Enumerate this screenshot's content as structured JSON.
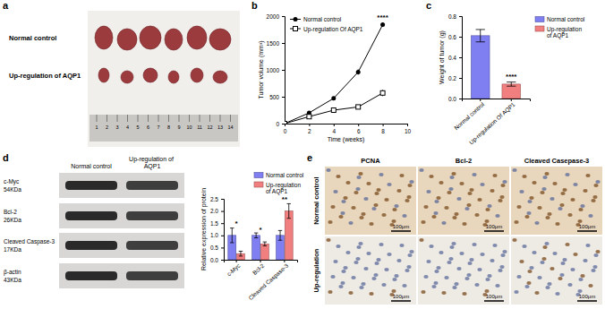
{
  "figure": {
    "letters": [
      "a",
      "b",
      "c",
      "d",
      "e"
    ],
    "panel_a": {
      "rows": [
        "Normal control",
        "Up-regulation of AQP1"
      ],
      "ruler": [
        1,
        2,
        3,
        4,
        5,
        6,
        7,
        8,
        9,
        10,
        11,
        12,
        13,
        14
      ]
    },
    "panel_d": {
      "columns": [
        "Normal control",
        "Up-regulation of AQP1"
      ],
      "bands": [
        {
          "name": "c-Myc",
          "size": "54KDa"
        },
        {
          "name": "Bcl-2",
          "size": "26KDa"
        },
        {
          "name": "Cleaved Caspase-3",
          "size": "17KDa"
        },
        {
          "name": "β-actin",
          "size": "43KDa"
        }
      ]
    },
    "panel_e": {
      "columns": [
        "PCNA",
        "Bcl-2",
        "Cleaved Casepase-3"
      ],
      "rows": [
        "Normal control",
        "Up-regulation"
      ],
      "scale_bar": "100μm"
    }
  },
  "chart_data": [
    {
      "type": "line",
      "x_label": "Time (weeks)",
      "y_label": "Tumor volume (mm³)",
      "x": [
        0,
        2,
        4,
        6,
        8
      ],
      "series": [
        {
          "name": "Normal control",
          "color": "#000000",
          "marker": "circle",
          "line_style": "solid",
          "values": [
            0,
            200,
            470,
            960,
            1840
          ],
          "errors": [
            0,
            20,
            30,
            50,
            40
          ]
        },
        {
          "name": "Up-regulation Of AQP1",
          "color": "#000000",
          "marker": "square",
          "line_style": "solid",
          "values": [
            0,
            130,
            250,
            310,
            570
          ],
          "errors": [
            0,
            15,
            20,
            30,
            60
          ]
        }
      ],
      "xlim": [
        0,
        10
      ],
      "xticks": [
        0,
        2,
        4,
        6,
        8,
        10
      ],
      "ylim": [
        0,
        2000
      ],
      "yticks": [
        0,
        500,
        1000,
        1500,
        2000
      ],
      "legend": "upper left",
      "annotations": [
        {
          "text": "****",
          "x": 8,
          "y": 1930
        }
      ]
    },
    {
      "type": "bar",
      "y_label": "Weight of tumor (g)",
      "categories": [
        "Normal control",
        "Up-regulation Of AQP1"
      ],
      "series": [
        {
          "name": "Normal control",
          "color": "#7f7ff2",
          "values": [
            0.61,
            null
          ],
          "errors": [
            0.06,
            null
          ]
        },
        {
          "name": "Up-regulation of AQP1",
          "color": "#f27f7f",
          "values": [
            null,
            0.14
          ],
          "errors": [
            null,
            0.02
          ]
        }
      ],
      "ylim": [
        0,
        0.8
      ],
      "yticks": [
        {
          "value": 0,
          "label": "0.0"
        },
        0.2,
        0.4,
        0.6,
        0.8
      ],
      "legend": "right",
      "annotations": [
        {
          "text": "****",
          "x": 1,
          "y": 0.19
        }
      ]
    },
    {
      "type": "bar",
      "y_label": "Relative expression of protein",
      "categories": [
        "c-Myc",
        "Bcl-2",
        "Cleaved Caspase-3"
      ],
      "series": [
        {
          "name": "Normal control",
          "color": "#7f7ff2",
          "values": [
            1.0,
            1.0,
            1.0
          ],
          "errors": [
            0.3,
            0.1,
            0.2
          ]
        },
        {
          "name": "Up-regulation of AQP1",
          "color": "#f27f7f",
          "values": [
            0.25,
            0.65,
            2.0
          ],
          "errors": [
            0.1,
            0.08,
            0.3
          ]
        }
      ],
      "ylim": [
        0,
        2.5
      ],
      "yticks": [
        {
          "value": 0,
          "label": "0.0"
        },
        0.5,
        {
          "value": 1,
          "label": "1.0"
        },
        1.5,
        {
          "value": 2,
          "label": "2.0"
        },
        2.5
      ],
      "legend": "upper right",
      "annotations": [
        {
          "text": "*",
          "x": 0,
          "y": 1.38
        },
        {
          "text": "*",
          "x": 1,
          "y": 1.15
        },
        {
          "text": "**",
          "x": 2,
          "y": 2.4
        }
      ]
    }
  ]
}
